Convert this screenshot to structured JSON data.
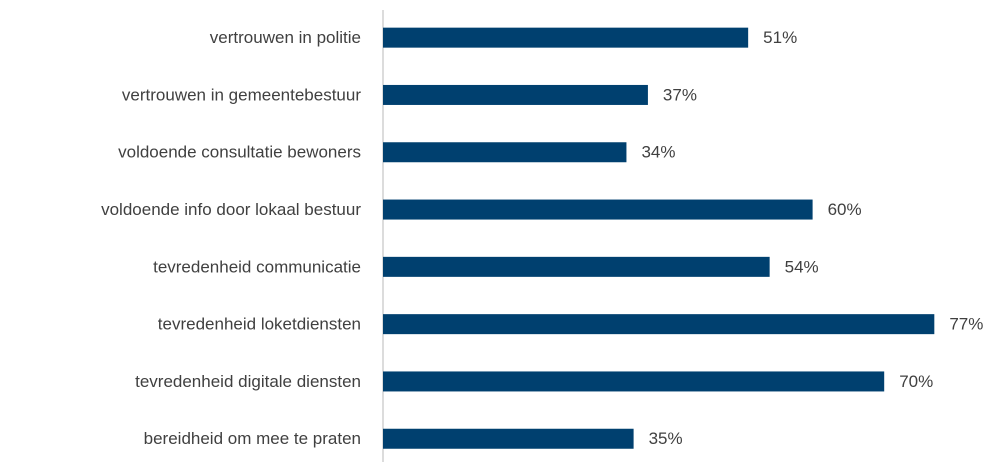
{
  "chart_data": {
    "type": "bar",
    "orientation": "horizontal",
    "categories": [
      "vertrouwen in politie",
      "vertrouwen in gemeentebestuur",
      "voldoende consultatie bewoners",
      "voldoende info door lokaal bestuur",
      "tevredenheid communicatie",
      "tevredenheid loketdiensten",
      "tevredenheid digitale diensten",
      "bereidheid om mee te praten"
    ],
    "values": [
      51,
      37,
      34,
      60,
      54,
      77,
      70,
      35
    ],
    "value_labels": [
      "51%",
      "37%",
      "34%",
      "60%",
      "54%",
      "77%",
      "70%",
      "35%"
    ],
    "color": "#00406f",
    "xlim": [
      0,
      100
    ],
    "grid": false
  }
}
